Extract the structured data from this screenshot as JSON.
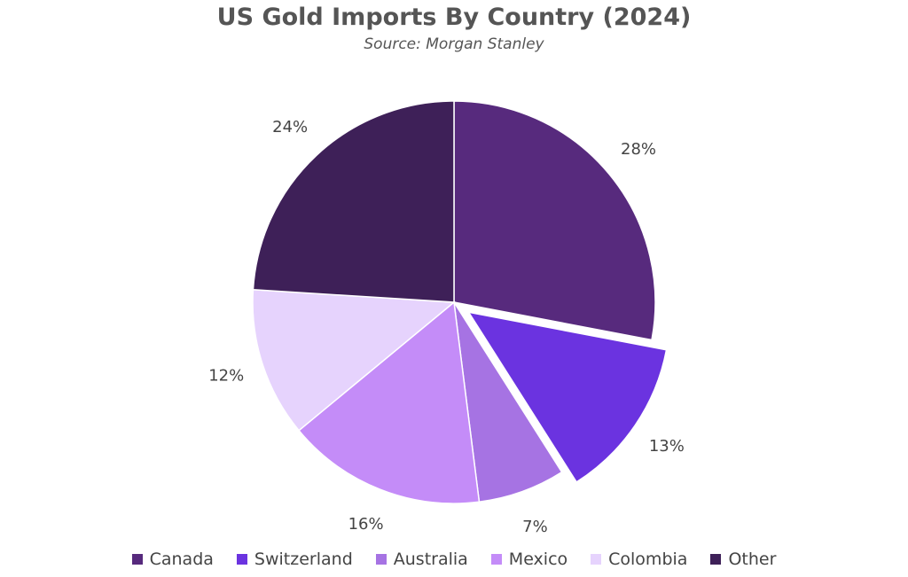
{
  "chart_data": {
    "type": "pie",
    "title": "US Gold Imports By Country (2024)",
    "subtitle": "Source: Morgan Stanley",
    "start_angle_deg": 0,
    "direction": "clockwise",
    "exploded": [
      "Switzerland"
    ],
    "legend_position": "bottom",
    "slices": [
      {
        "name": "Canada",
        "value": 28,
        "label": "28%",
        "color": "#572a7d"
      },
      {
        "name": "Switzerland",
        "value": 13,
        "label": "13%",
        "color": "#6b33e0"
      },
      {
        "name": "Australia",
        "value": 7,
        "label": "7%",
        "color": "#a673e3"
      },
      {
        "name": "Mexico",
        "value": 16,
        "label": "16%",
        "color": "#c48cf8"
      },
      {
        "name": "Colombia",
        "value": 12,
        "label": "12%",
        "color": "#e6d3fd"
      },
      {
        "name": "Other",
        "value": 24,
        "label": "24%",
        "color": "#3e2058"
      }
    ]
  }
}
